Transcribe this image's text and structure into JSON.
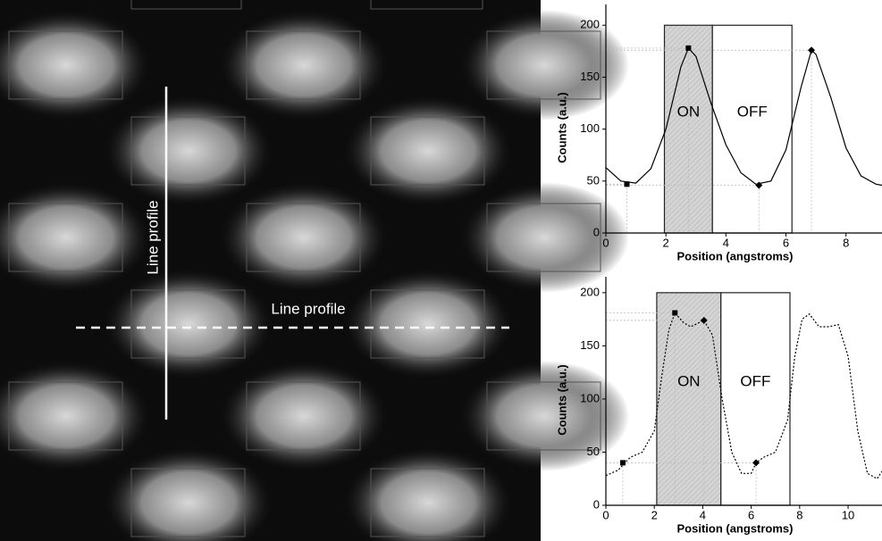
{
  "image_labels": {
    "vertical": "Line profile",
    "horizontal": "Line profile"
  },
  "chart_data": [
    {
      "type": "line",
      "xlabel": "Position (angstroms)",
      "ylabel": "Counts (a.u.)",
      "xlim": [
        0,
        9.2
      ],
      "ylim": [
        0,
        220
      ],
      "xticks": [
        0,
        2,
        4,
        6,
        8
      ],
      "yticks": [
        0,
        50,
        100,
        150,
        200
      ],
      "x": [
        0,
        0.5,
        1.0,
        1.5,
        2.0,
        2.5,
        2.75,
        3.0,
        3.5,
        4.0,
        4.5,
        5.0,
        5.5,
        6.0,
        6.5,
        6.85,
        7.0,
        7.5,
        8.0,
        8.5,
        9.0,
        9.2
      ],
      "series": [
        {
          "color": "#000000",
          "dash": false,
          "values": [
            63,
            50,
            48,
            62,
            100,
            160,
            178,
            170,
            125,
            85,
            58,
            47,
            50,
            80,
            140,
            176,
            172,
            130,
            82,
            55,
            47,
            46
          ]
        }
      ],
      "markers": [
        {
          "x": 0.7,
          "y": 47,
          "shape": "square"
        },
        {
          "x": 2.75,
          "y": 178,
          "shape": "square"
        },
        {
          "x": 5.1,
          "y": 46,
          "shape": "diamond"
        },
        {
          "x": 6.85,
          "y": 176,
          "shape": "diamond"
        }
      ],
      "regions": [
        {
          "label": "ON",
          "x": [
            1.95,
            3.55
          ],
          "y": [
            0,
            200
          ],
          "shaded": true
        },
        {
          "label": "OFF",
          "x": [
            3.55,
            6.2
          ],
          "y": [
            0,
            200
          ],
          "shaded": false
        }
      ]
    },
    {
      "type": "line",
      "xlabel": "Position (angstroms)",
      "ylabel": "Counts (a.u.)",
      "xlim": [
        0,
        11.4
      ],
      "ylim": [
        0,
        215
      ],
      "xticks": [
        0,
        2,
        4,
        6,
        8,
        10
      ],
      "yticks": [
        0,
        50,
        100,
        150,
        200
      ],
      "x": [
        0,
        0.5,
        1.0,
        1.5,
        2.0,
        2.3,
        2.6,
        2.85,
        3.2,
        3.5,
        4.05,
        4.4,
        4.8,
        5.2,
        5.6,
        6.0,
        6.2,
        6.5,
        7.0,
        7.5,
        7.8,
        8.1,
        8.4,
        8.8,
        9.2,
        9.6,
        10.0,
        10.4,
        10.8,
        11.2,
        11.4
      ],
      "series": [
        {
          "color": "#000000",
          "dash": true,
          "values": [
            28,
            33,
            45,
            50,
            70,
            120,
            165,
            181,
            172,
            168,
            174,
            160,
            100,
            50,
            30,
            30,
            40,
            45,
            50,
            80,
            140,
            175,
            180,
            168,
            168,
            170,
            140,
            70,
            30,
            25,
            32
          ]
        }
      ],
      "markers": [
        {
          "x": 0.7,
          "y": 40,
          "shape": "square"
        },
        {
          "x": 2.85,
          "y": 181,
          "shape": "square"
        },
        {
          "x": 4.05,
          "y": 174,
          "shape": "diamond"
        },
        {
          "x": 6.2,
          "y": 40,
          "shape": "diamond"
        }
      ],
      "regions": [
        {
          "label": "ON",
          "x": [
            2.1,
            4.75
          ],
          "y": [
            0,
            200
          ],
          "shaded": true
        },
        {
          "label": "OFF",
          "x": [
            4.75,
            7.6
          ],
          "y": [
            0,
            200
          ],
          "shaded": false
        }
      ]
    }
  ]
}
